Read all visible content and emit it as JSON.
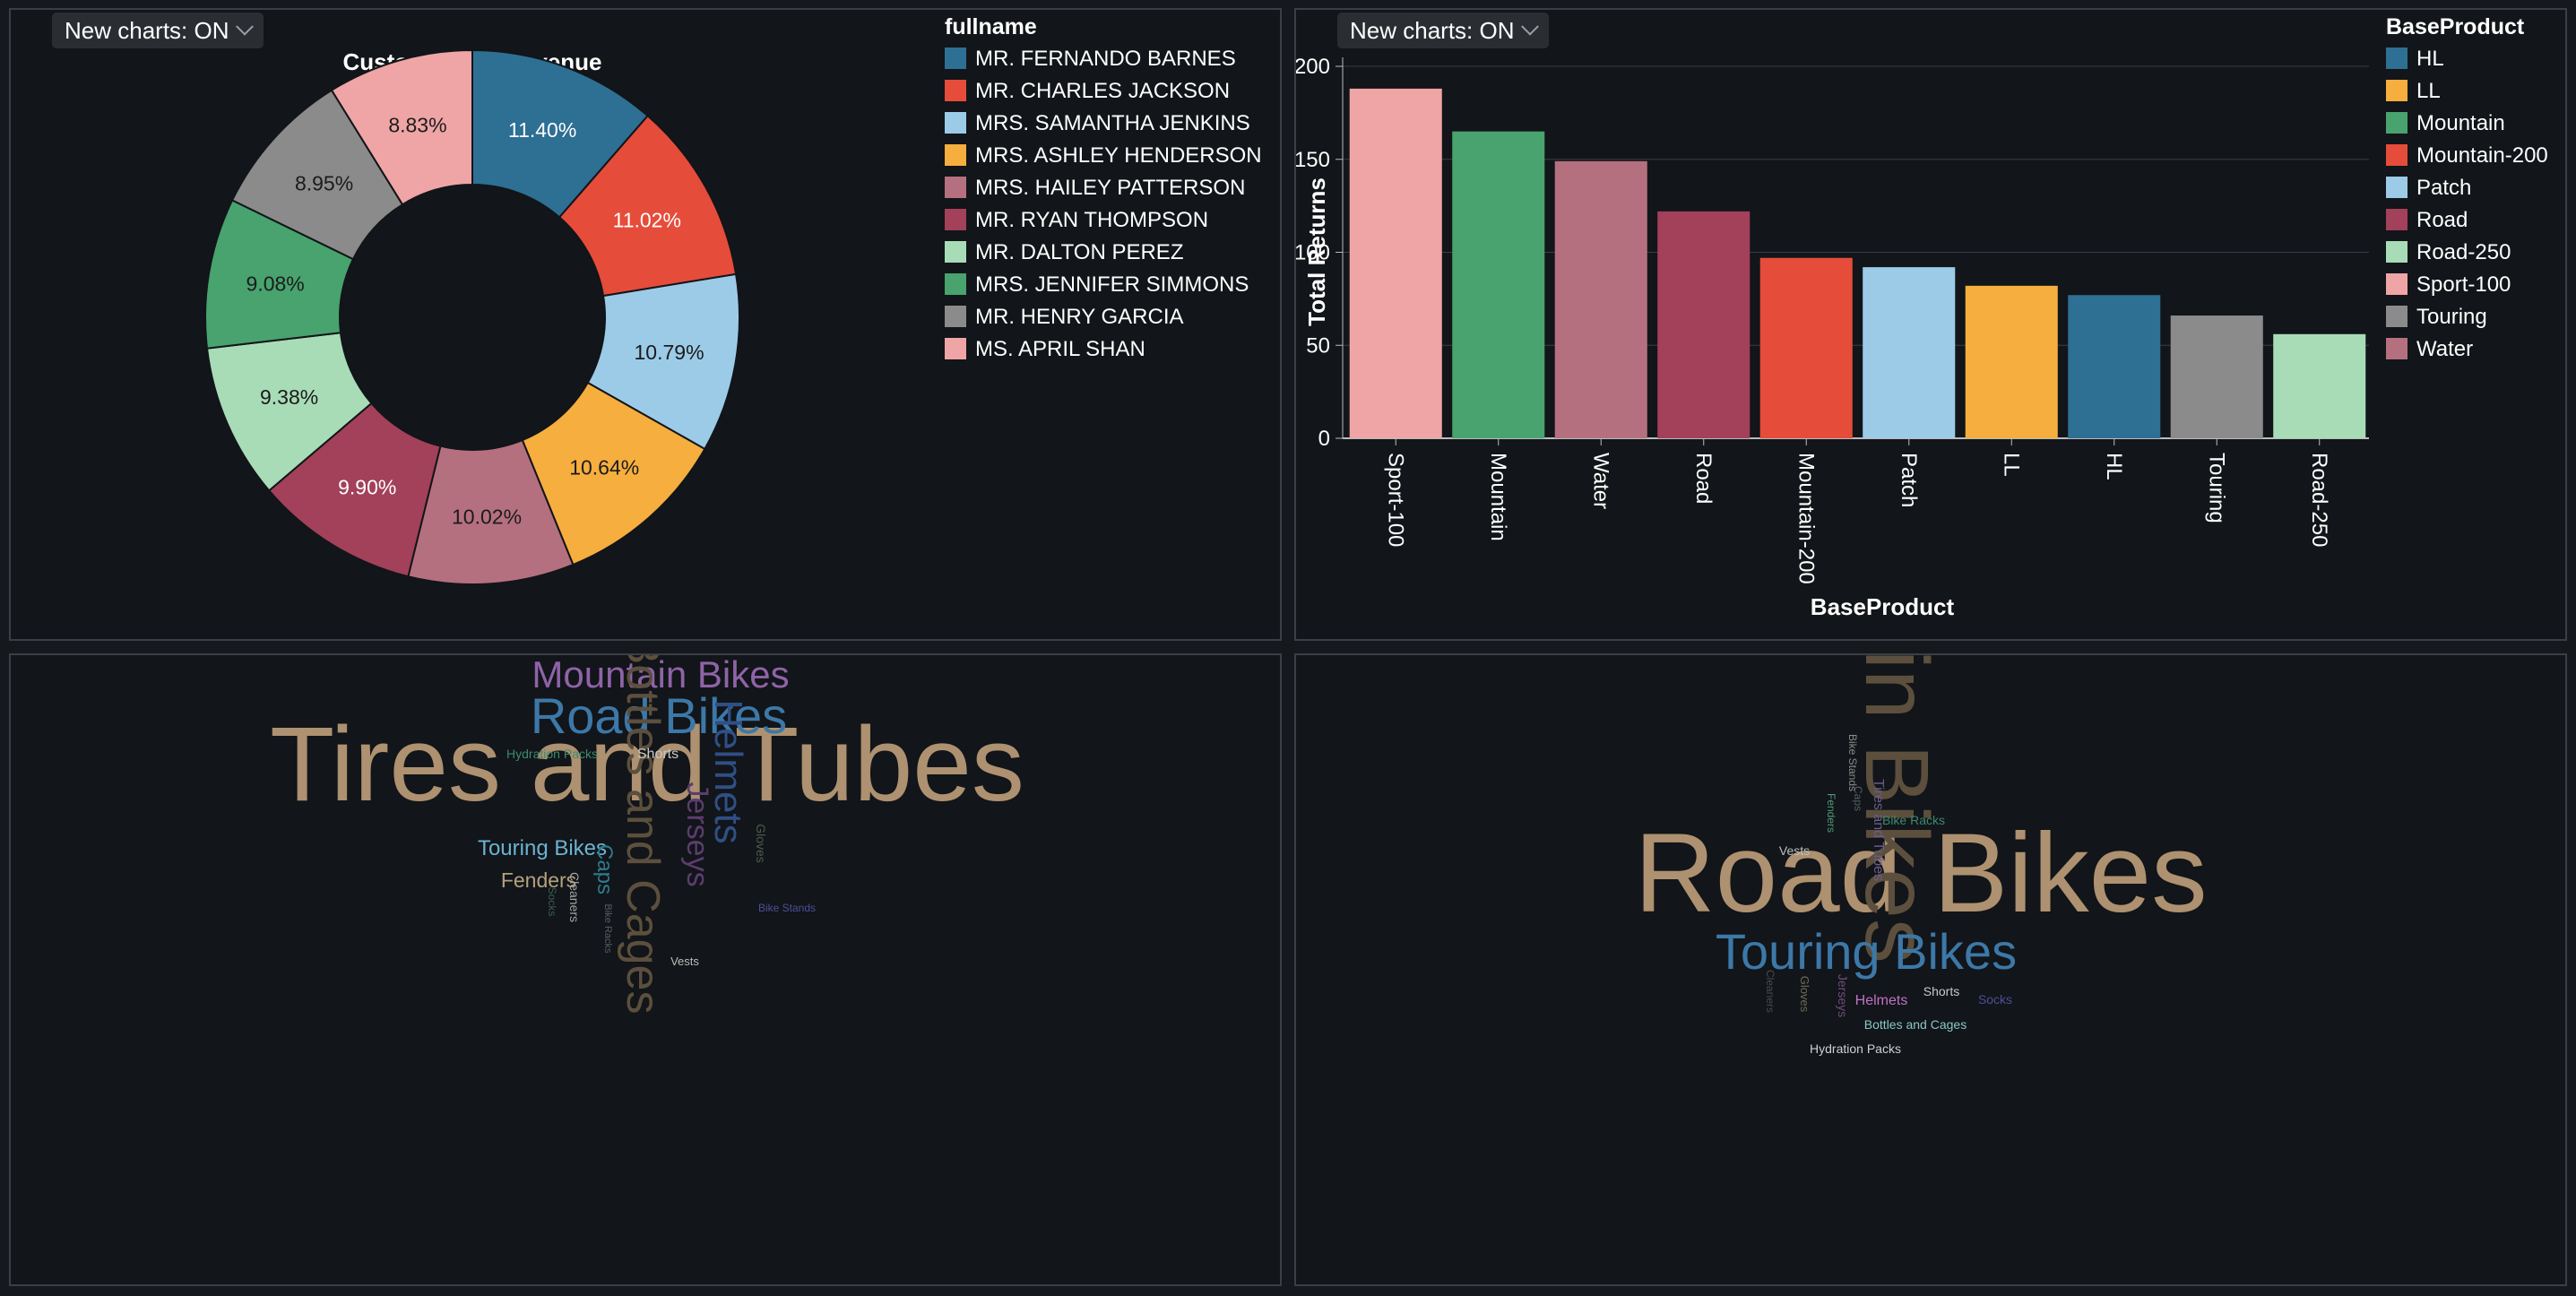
{
  "toggle_label": "New charts: ON",
  "chart_data": [
    {
      "type": "pie",
      "donut": true,
      "title": "Customers by Revenue",
      "legend_title": "fullname",
      "legend_placement": "top-right",
      "slices": [
        {
          "label": "MR. FERNANDO BARNES",
          "value": 11.4,
          "display": "11.40%",
          "color": "#2e6f94"
        },
        {
          "label": "MR. CHARLES JACKSON",
          "value": 11.02,
          "display": "11.02%",
          "color": "#e64c3a"
        },
        {
          "label": "MRS. SAMANTHA JENKINS",
          "value": 10.79,
          "display": "10.79%",
          "color": "#9ccbe8"
        },
        {
          "label": "MRS. ASHLEY HENDERSON",
          "value": 10.64,
          "display": "10.64%",
          "color": "#f6ae3e"
        },
        {
          "label": "MRS. HAILEY PATTERSON",
          "value": 10.02,
          "display": "10.02%",
          "color": "#b5707f"
        },
        {
          "label": "MR. RYAN THOMPSON",
          "value": 9.9,
          "display": "9.90%",
          "color": "#a3405a"
        },
        {
          "label": "MR. DALTON PEREZ",
          "value": 9.38,
          "display": "9.38%",
          "color": "#a8dcb7"
        },
        {
          "label": "MRS. JENNIFER SIMMONS",
          "value": 9.08,
          "display": "9.08%",
          "color": "#48a36e"
        },
        {
          "label": "MR. HENRY GARCIA",
          "value": 8.95,
          "display": "8.95%",
          "color": "#8b8b8b"
        },
        {
          "label": "MS. APRIL SHAN",
          "value": 8.83,
          "display": "8.83%",
          "color": "#efa5a5"
        }
      ]
    },
    {
      "type": "bar",
      "xlabel": "BaseProduct",
      "ylabel": "Total Returns",
      "ylim": [
        0,
        200
      ],
      "yticks": [
        0,
        50,
        100,
        150,
        200
      ],
      "grid": true,
      "legend_title": "BaseProduct",
      "legend_placement": "top-right",
      "categories": [
        "Sport-100",
        "Mountain",
        "Water",
        "Road",
        "Mountain-200",
        "Patch",
        "LL",
        "HL",
        "Touring",
        "Road-250"
      ],
      "values": [
        188,
        165,
        149,
        122,
        97,
        92,
        82,
        77,
        66,
        56
      ],
      "colors": [
        "#efa5a5",
        "#48a36e",
        "#b5707f",
        "#a3405a",
        "#e64c3a",
        "#9ccbe8",
        "#f6ae3e",
        "#2e6f94",
        "#8b8b8b",
        "#a8dcb7"
      ],
      "legend": [
        {
          "label": "HL",
          "color": "#2e6f94"
        },
        {
          "label": "LL",
          "color": "#f6ae3e"
        },
        {
          "label": "Mountain",
          "color": "#48a36e"
        },
        {
          "label": "Mountain-200",
          "color": "#e64c3a"
        },
        {
          "label": "Patch",
          "color": "#9ccbe8"
        },
        {
          "label": "Road",
          "color": "#a3405a"
        },
        {
          "label": "Road-250",
          "color": "#a8dcb7"
        },
        {
          "label": "Sport-100",
          "color": "#efa5a5"
        },
        {
          "label": "Touring",
          "color": "#8b8b8b"
        },
        {
          "label": "Water",
          "color": "#b5707f"
        }
      ]
    },
    {
      "type": "wordcloud",
      "words": [
        {
          "text": "Tires and Tubes",
          "color": "#ad9170"
        },
        {
          "text": "Road Bikes",
          "color": "#3c78a8"
        },
        {
          "text": "Mountain Bikes",
          "color": "#8f63a8"
        },
        {
          "text": "Bottles and Cages",
          "color": "#5c4f3d"
        },
        {
          "text": "Helmets",
          "color": "#2f4f86"
        },
        {
          "text": "Jerseys",
          "color": "#5c3d6e"
        },
        {
          "text": "Touring Bikes",
          "color": "#6cb3d1"
        },
        {
          "text": "Fenders",
          "color": "#b2a27d"
        },
        {
          "text": "Caps",
          "color": "#2f7a8e"
        },
        {
          "text": "Hydration Packs",
          "color": "#3c8a6e"
        },
        {
          "text": "Shorts",
          "color": "#c9c9c9"
        },
        {
          "text": "Gloves",
          "color": "#4e5b4c"
        },
        {
          "text": "Cleaners",
          "color": "#a4a4a4"
        },
        {
          "text": "Socks",
          "color": "#3b5d4f"
        },
        {
          "text": "Bike Racks",
          "color": "#565e66"
        },
        {
          "text": "Bike Stands",
          "color": "#4e4e9a"
        },
        {
          "text": "Vests",
          "color": "#bdbdbd"
        }
      ]
    },
    {
      "type": "wordcloud",
      "words": [
        {
          "text": "Road Bikes",
          "color": "#ad9170"
        },
        {
          "text": "Mountain Bikes",
          "color": "#5c4f3d"
        },
        {
          "text": "Touring Bikes",
          "color": "#3c78a8"
        },
        {
          "text": "Helmets",
          "color": "#c270c7"
        },
        {
          "text": "Shorts",
          "color": "#c9c9c9"
        },
        {
          "text": "Socks",
          "color": "#4e4e9a"
        },
        {
          "text": "Bottles and Cages",
          "color": "#8ac6c6"
        },
        {
          "text": "Hydration Packs",
          "color": "#d0d0d0"
        },
        {
          "text": "Vests",
          "color": "#bdbdbd"
        },
        {
          "text": "Bike Racks",
          "color": "#3c8a6e"
        },
        {
          "text": "Bike Stands",
          "color": "#8b8b8b"
        },
        {
          "text": "Caps",
          "color": "#565e66"
        },
        {
          "text": "Fenders",
          "color": "#4f9a7a"
        },
        {
          "text": "Tires and Tubes",
          "color": "#6a5c8c"
        },
        {
          "text": "Jerseys",
          "color": "#6e4e7a"
        },
        {
          "text": "Gloves",
          "color": "#6d6d55"
        },
        {
          "text": "Cleaners",
          "color": "#4a4a4a"
        }
      ]
    }
  ]
}
